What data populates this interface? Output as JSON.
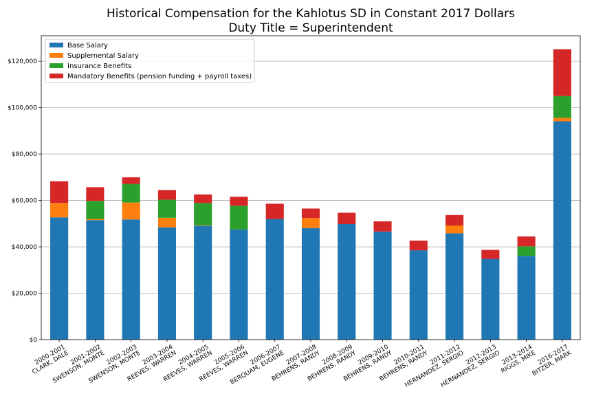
{
  "chart_data": {
    "type": "bar",
    "stacked": true,
    "title": "Historical Compensation for the Kahlotus SD in Constant 2017 Dollars",
    "subtitle": "Duty Title = Superintendent",
    "xlabel": "",
    "ylabel": "",
    "ylim": [
      0,
      131000
    ],
    "yticks": [
      0,
      20000,
      40000,
      60000,
      80000,
      100000,
      120000
    ],
    "ytick_labels": [
      "$0",
      "$20,000",
      "$40,000",
      "$60,000",
      "$80,000",
      "$100,000",
      "$120,000"
    ],
    "grid": "horizontal",
    "legend_position": "top-left",
    "categories": [
      "2000-2001\nCLARK, DALE",
      "2001-2002\nSWENSON, MONTE",
      "2002-2003\nSWENSON, MONTE",
      "2003-2004\nREEVES, WARREN",
      "2004-2005\nREEVES, WARREN",
      "2005-2006\nREEVES, WARREN",
      "2006-2007\nBERQUAM, EUGENE",
      "2007-2008\nBEHRENS, RANDY",
      "2008-2009\nBEHRENS, RANDY",
      "2009-2010\nBEHRENS, RANDY",
      "2010-2011\nBEHRENS, RANDY",
      "2011-2012\nHERNANDEZ, SERGIO",
      "2012-2013\nHERNANDEZ, SERGIO",
      "2013-2014\nRIGGS, MIKE",
      "2016-2017\nBITZER, MARK"
    ],
    "series": [
      {
        "name": "Base Salary",
        "color": "#1f77b4",
        "values": [
          52700,
          51500,
          51800,
          48400,
          49100,
          47500,
          52000,
          48100,
          49800,
          46600,
          38500,
          45800,
          34800,
          36100,
          94100
        ]
      },
      {
        "name": "Supplemental Salary",
        "color": "#ff7f0e",
        "values": [
          6200,
          500,
          7300,
          4100,
          200,
          0,
          0,
          4300,
          0,
          0,
          0,
          3400,
          0,
          0,
          1500
        ]
      },
      {
        "name": "Insurance Benefits",
        "color": "#2ca02c",
        "values": [
          0,
          7800,
          8000,
          7800,
          9600,
          10200,
          0,
          0,
          0,
          0,
          0,
          0,
          0,
          4100,
          9400
        ]
      },
      {
        "name": "Mandatory Benefits (pension funding + payroll taxes)",
        "color": "#d62728",
        "values": [
          9400,
          5900,
          2900,
          4200,
          3700,
          3900,
          6600,
          4100,
          4900,
          4400,
          4200,
          4500,
          3900,
          4300,
          20200
        ]
      }
    ]
  }
}
